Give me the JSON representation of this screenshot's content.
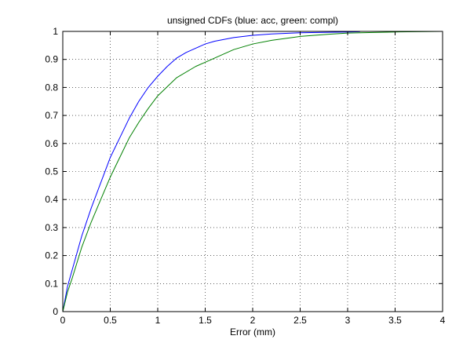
{
  "chart_data": {
    "type": "line",
    "title": "unsigned CDFs (blue: acc, green: compl)",
    "xlabel": "Error (mm)",
    "ylabel": "",
    "xlim": [
      0,
      4
    ],
    "ylim": [
      0,
      1
    ],
    "xticks": [
      0,
      0.5,
      1,
      1.5,
      2,
      2.5,
      3,
      3.5,
      4
    ],
    "xtick_labels": [
      "0",
      "0.5",
      "1",
      "1.5",
      "2",
      "2.5",
      "3",
      "3.5",
      "4"
    ],
    "yticks": [
      0,
      0.1,
      0.2,
      0.3,
      0.4,
      0.5,
      0.6,
      0.7,
      0.8,
      0.9,
      1
    ],
    "ytick_labels": [
      "0",
      "0.1",
      "0.2",
      "0.3",
      "0.4",
      "0.5",
      "0.6",
      "0.7",
      "0.8",
      "0.9",
      "1"
    ],
    "grid": true,
    "series": [
      {
        "color": "#0000ff",
        "x": [
          0,
          0.05,
          0.1,
          0.2,
          0.3,
          0.4,
          0.5,
          0.6,
          0.7,
          0.8,
          0.9,
          1.0,
          1.1,
          1.2,
          1.3,
          1.4,
          1.5,
          1.6,
          1.8,
          2.0,
          2.2,
          2.5,
          2.8,
          3.0,
          3.13
        ],
        "y": [
          0,
          0.09,
          0.15,
          0.27,
          0.37,
          0.46,
          0.55,
          0.62,
          0.69,
          0.75,
          0.8,
          0.84,
          0.875,
          0.905,
          0.925,
          0.94,
          0.955,
          0.965,
          0.978,
          0.986,
          0.991,
          0.995,
          0.997,
          0.998,
          0.999
        ]
      },
      {
        "color": "#008000",
        "x": [
          0,
          0.05,
          0.1,
          0.2,
          0.3,
          0.4,
          0.5,
          0.6,
          0.7,
          0.8,
          0.9,
          1.0,
          1.2,
          1.4,
          1.5,
          1.6,
          1.8,
          2.0,
          2.2,
          2.5,
          2.8,
          3.0,
          3.5,
          4.0
        ],
        "y": [
          0,
          0.07,
          0.12,
          0.23,
          0.32,
          0.4,
          0.48,
          0.55,
          0.62,
          0.675,
          0.725,
          0.77,
          0.835,
          0.875,
          0.89,
          0.905,
          0.935,
          0.955,
          0.968,
          0.982,
          0.99,
          0.994,
          0.998,
          1.0
        ]
      }
    ]
  }
}
